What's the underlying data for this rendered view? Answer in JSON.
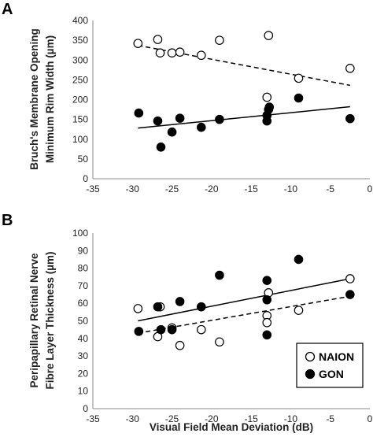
{
  "panel_a_label": "A",
  "panel_b_label": "B",
  "colors": {
    "naion": "#ffffff",
    "gon": "#000000",
    "stroke": "#000000",
    "axis": "#888888"
  },
  "chart_data": [
    {
      "type": "scatter",
      "panel": "A",
      "ylabel_line1": "Bruch's Membrane Opening",
      "ylabel_line2": "Minimum Rim Width (µm)",
      "xlim": [
        -35,
        0
      ],
      "ylim": [
        0,
        400
      ],
      "xticks": [
        "-35",
        "-30",
        "-25",
        "-20",
        "-15",
        "-10",
        "-5",
        "0"
      ],
      "yticks": [
        "0",
        "50",
        "100",
        "150",
        "200",
        "250",
        "300",
        "350",
        "400"
      ],
      "series": [
        {
          "name": "NAION",
          "marker": "open-circle",
          "points": [
            [
              -29.3,
              342
            ],
            [
              -26.8,
              352
            ],
            [
              -26.5,
              318
            ],
            [
              -25,
              318
            ],
            [
              -24,
              320
            ],
            [
              -21.3,
              312
            ],
            [
              -19,
              350
            ],
            [
              -13,
              206
            ],
            [
              -12.8,
              362
            ],
            [
              -9,
              254
            ],
            [
              -2.5,
              279
            ]
          ],
          "trendline": {
            "style": "dashed",
            "x": [
              -29.3,
              -2.5
            ],
            "y": [
              337,
              236
            ]
          }
        },
        {
          "name": "GON",
          "marker": "filled-circle",
          "points": [
            [
              -29.2,
              166
            ],
            [
              -26.8,
              146
            ],
            [
              -26.4,
              80
            ],
            [
              -25,
              118
            ],
            [
              -24,
              153
            ],
            [
              -21.3,
              130
            ],
            [
              -19,
              150
            ],
            [
              -13,
              146
            ],
            [
              -13,
              160
            ],
            [
              -12.8,
              175
            ],
            [
              -12.7,
              181
            ],
            [
              -9,
              204
            ],
            [
              -2.5,
              152
            ]
          ],
          "trendline": {
            "style": "solid",
            "x": [
              -29.3,
              -2.5
            ],
            "y": [
              128,
              182
            ]
          }
        }
      ]
    },
    {
      "type": "scatter",
      "panel": "B",
      "xlabel": "Visual Field Mean Deviation (dB)",
      "ylabel_line1": "Peripapillary Retinal Nerve",
      "ylabel_line2": "Fibre Layer Thickness (µm)",
      "xlim": [
        -35,
        0
      ],
      "ylim": [
        0,
        100
      ],
      "xticks": [
        "-35",
        "-30",
        "-25",
        "-20",
        "-15",
        "-10",
        "-5",
        "0"
      ],
      "yticks": [
        "0",
        "10",
        "20",
        "30",
        "40",
        "50",
        "60",
        "70",
        "80",
        "90",
        "100"
      ],
      "legend_position": "bottom-right",
      "series": [
        {
          "name": "NAION",
          "marker": "open-circle",
          "points": [
            [
              -29.3,
              57
            ],
            [
              -26.8,
              41
            ],
            [
              -26.5,
              58
            ],
            [
              -25,
              46
            ],
            [
              -24,
              36
            ],
            [
              -21.3,
              45
            ],
            [
              -19,
              38
            ],
            [
              -13,
              53
            ],
            [
              -13,
              49
            ],
            [
              -12.8,
              66
            ],
            [
              -9,
              56
            ],
            [
              -2.5,
              74
            ]
          ],
          "trendline": {
            "style": "solid",
            "x": [
              -29.3,
              -2.5
            ],
            "y": [
              50,
              74
            ]
          }
        },
        {
          "name": "GON",
          "marker": "filled-circle",
          "points": [
            [
              -29.2,
              44
            ],
            [
              -26.8,
              58
            ],
            [
              -26.4,
              45
            ],
            [
              -25,
              45
            ],
            [
              -24,
              61
            ],
            [
              -21.3,
              58
            ],
            [
              -19,
              76
            ],
            [
              -13,
              73
            ],
            [
              -13,
              62
            ],
            [
              -13,
              42
            ],
            [
              -9,
              85
            ],
            [
              -2.5,
              65
            ]
          ],
          "trendline": {
            "style": "dashed",
            "x": [
              -29.3,
              -2.5
            ],
            "y": [
              43,
              64
            ]
          }
        }
      ]
    }
  ]
}
